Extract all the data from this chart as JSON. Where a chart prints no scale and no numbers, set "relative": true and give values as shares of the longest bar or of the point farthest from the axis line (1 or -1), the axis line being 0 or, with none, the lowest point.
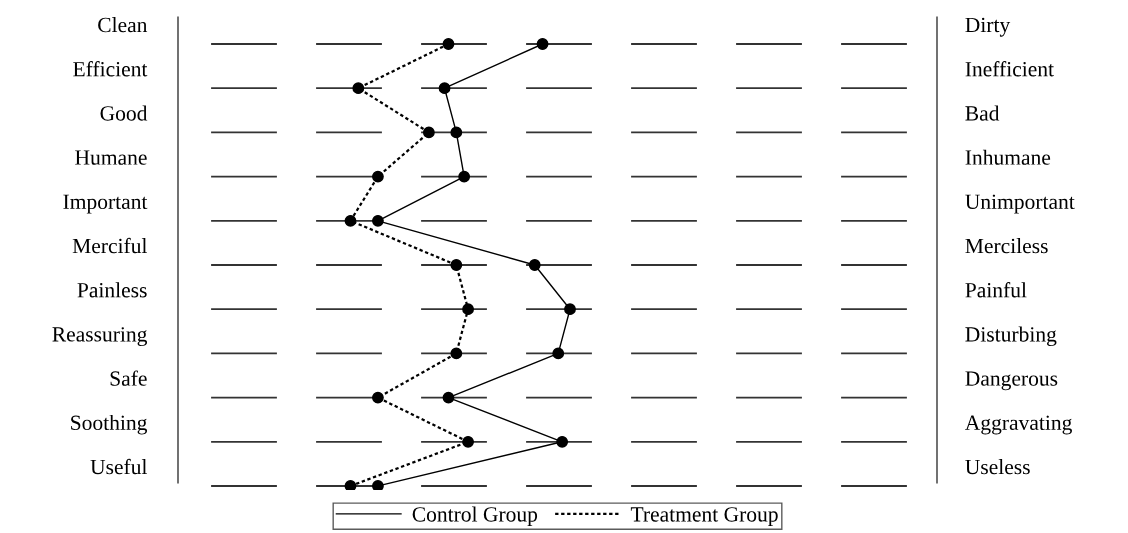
{
  "chart_data": {
    "type": "line",
    "orientation": "horizontal",
    "relative": true,
    "categories": [
      "Clean",
      "Efficient",
      "Good",
      "Humane",
      "Important",
      "Merciful",
      "Painless",
      "Reassuring",
      "Safe",
      "Soothing",
      "Useful"
    ],
    "y2_categories": [
      "Dirty",
      "Inefficient",
      "Bad",
      "Inhumane",
      "Unimportant",
      "Merciless",
      "Painful",
      "Disturbing",
      "Dangerous",
      "Aggravating",
      "Useless"
    ],
    "series": [
      {
        "name": "Control Group",
        "color": "#000000",
        "line_style": "solid",
        "values": [
          0.93,
          0.68,
          0.71,
          0.73,
          0.51,
          0.91,
          1.0,
          0.97,
          0.69,
          0.98,
          0.51
        ]
      },
      {
        "name": "Treatment Group",
        "color": "#000000",
        "line_style": "dotted",
        "values": [
          0.69,
          0.46,
          0.64,
          0.51,
          0.44,
          0.71,
          0.74,
          0.71,
          0.51,
          0.74,
          0.44
        ]
      }
    ],
    "marker": "circle",
    "legend": "bottom",
    "grid": false
  }
}
